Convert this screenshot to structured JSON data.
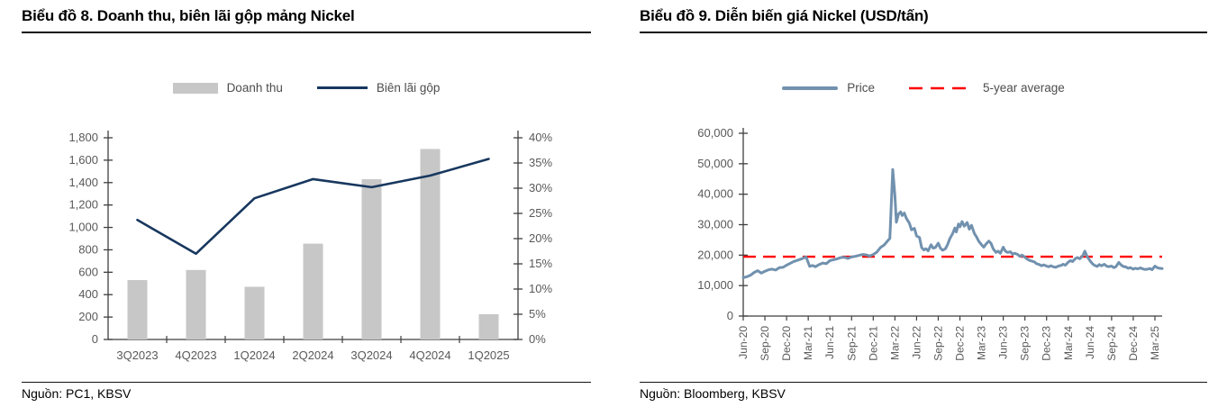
{
  "panels": {
    "left": {
      "title": "Biểu đồ 8. Doanh thu, biên lãi gộp mảng Nickel",
      "source": "Nguồn: PC1, KBSV"
    },
    "right": {
      "title": "Biểu đồ 9. Diễn biến giá Nickel (USD/tấn)",
      "source": "Nguồn: Bloomberg, KBSV"
    }
  },
  "colors": {
    "bar": "#c7c7c7",
    "margin_line": "#17375e",
    "price_line": "#7191ae",
    "average_line": "#ff0000",
    "axis_line": "#3f3f3f",
    "axis_text": "#595959",
    "rule": "#121212"
  },
  "chart_data": [
    {
      "type": "bar",
      "title": "Biểu đồ 8. Doanh thu, biên lãi gộp mảng Nickel",
      "categories": [
        "3Q2023",
        "4Q2023",
        "1Q2024",
        "2Q2024",
        "3Q2024",
        "4Q2024",
        "1Q2025"
      ],
      "series": [
        {
          "name": "Doanh thu",
          "type": "bar",
          "axis": "left",
          "color": "#c7c7c7",
          "values": [
            530,
            620,
            470,
            855,
            1430,
            1700,
            225
          ]
        },
        {
          "name": "Biên lãi gộp",
          "type": "line",
          "axis": "right",
          "color": "#17375e",
          "values": [
            23.7,
            17.0,
            28.0,
            31.8,
            30.2,
            32.5,
            35.8
          ],
          "unit": "%"
        }
      ],
      "left_axis": {
        "min": 0,
        "max": 1800,
        "step": 200
      },
      "right_axis": {
        "min": 0,
        "max": 40,
        "step": 5,
        "unit": "%"
      },
      "grid": false,
      "legend_position": "top"
    },
    {
      "type": "line",
      "title": "Biểu đồ 9. Diễn biến giá Nickel (USD/tấn)",
      "ylabel": "USD/tấn",
      "y_axis": {
        "min": 0,
        "max": 60000,
        "step": 10000
      },
      "x_tick_labels": [
        "Jun-20",
        "Sep-20",
        "Dec-20",
        "Mar-21",
        "Jun-21",
        "Sep-21",
        "Dec-21",
        "Mar-22",
        "Jun-22",
        "Sep-22",
        "Dec-22",
        "Mar-23",
        "Jun-23",
        "Sep-23",
        "Dec-23",
        "Mar-24",
        "Jun-24",
        "Sep-24",
        "Dec-24",
        "Mar-25"
      ],
      "x_tick_step_months": 3,
      "x_unit": "months since Jun-20",
      "grid": false,
      "legend_position": "top",
      "average_line": {
        "name": "5-year average",
        "value": 19500,
        "color": "#ff0000",
        "style": "dashed"
      },
      "price_series": {
        "name": "Price",
        "color": "#7191ae",
        "points": [
          [
            0,
            12600
          ],
          [
            0.5,
            12900
          ],
          [
            1,
            13400
          ],
          [
            1.5,
            14300
          ],
          [
            2,
            14900
          ],
          [
            2.5,
            14100
          ],
          [
            3,
            14700
          ],
          [
            3.5,
            15200
          ],
          [
            4,
            15400
          ],
          [
            4.5,
            15100
          ],
          [
            5,
            15900
          ],
          [
            5.5,
            16000
          ],
          [
            6,
            16700
          ],
          [
            6.5,
            17300
          ],
          [
            7,
            17900
          ],
          [
            7.5,
            18300
          ],
          [
            8,
            18700
          ],
          [
            8.7,
            19400
          ],
          [
            9.2,
            16300
          ],
          [
            9.6,
            16600
          ],
          [
            10,
            16200
          ],
          [
            10.5,
            16900
          ],
          [
            11,
            17400
          ],
          [
            11.5,
            17200
          ],
          [
            12,
            18200
          ],
          [
            12.5,
            18500
          ],
          [
            13,
            18800
          ],
          [
            13.5,
            19200
          ],
          [
            14,
            19300
          ],
          [
            14.5,
            18900
          ],
          [
            15,
            19400
          ],
          [
            15.5,
            19600
          ],
          [
            16,
            19900
          ],
          [
            16.5,
            20200
          ],
          [
            17,
            20100
          ],
          [
            17.5,
            19700
          ],
          [
            18,
            20200
          ],
          [
            18.5,
            21000
          ],
          [
            19,
            22500
          ],
          [
            19.5,
            23300
          ],
          [
            20,
            24700
          ],
          [
            20.3,
            25500
          ],
          [
            20.7,
            48100
          ],
          [
            21,
            39500
          ],
          [
            21.2,
            30800
          ],
          [
            21.5,
            33500
          ],
          [
            21.8,
            34200
          ],
          [
            22,
            33000
          ],
          [
            22.3,
            33800
          ],
          [
            22.6,
            32000
          ],
          [
            23,
            30500
          ],
          [
            23.3,
            28300
          ],
          [
            23.7,
            28800
          ],
          [
            24,
            26300
          ],
          [
            24.4,
            25800
          ],
          [
            24.7,
            22500
          ],
          [
            25,
            21700
          ],
          [
            25.3,
            22100
          ],
          [
            25.6,
            21400
          ],
          [
            26,
            23400
          ],
          [
            26.3,
            22300
          ],
          [
            26.6,
            22500
          ],
          [
            27,
            23900
          ],
          [
            27.3,
            22300
          ],
          [
            27.6,
            21600
          ],
          [
            28,
            22100
          ],
          [
            28.3,
            23500
          ],
          [
            28.6,
            25400
          ],
          [
            29,
            27100
          ],
          [
            29.3,
            28900
          ],
          [
            29.5,
            27600
          ],
          [
            29.8,
            30200
          ],
          [
            30,
            29300
          ],
          [
            30.3,
            31000
          ],
          [
            30.6,
            29500
          ],
          [
            31,
            30700
          ],
          [
            31.3,
            28500
          ],
          [
            31.6,
            29800
          ],
          [
            32,
            27100
          ],
          [
            32.3,
            26000
          ],
          [
            32.6,
            24600
          ],
          [
            33,
            23400
          ],
          [
            33.3,
            22600
          ],
          [
            33.6,
            23600
          ],
          [
            34,
            24600
          ],
          [
            34.3,
            23900
          ],
          [
            34.6,
            22100
          ],
          [
            35,
            20900
          ],
          [
            35.3,
            21300
          ],
          [
            35.6,
            20600
          ],
          [
            36,
            22600
          ],
          [
            36.3,
            21300
          ],
          [
            36.6,
            20900
          ],
          [
            37,
            21100
          ],
          [
            37.3,
            20300
          ],
          [
            37.6,
            20600
          ],
          [
            38,
            20200
          ],
          [
            38.3,
            19600
          ],
          [
            38.6,
            20000
          ],
          [
            39,
            19300
          ],
          [
            39.3,
            18700
          ],
          [
            39.6,
            18300
          ],
          [
            40,
            18000
          ],
          [
            40.3,
            17800
          ],
          [
            40.6,
            17200
          ],
          [
            41,
            16900
          ],
          [
            41.3,
            16500
          ],
          [
            41.6,
            16800
          ],
          [
            42,
            16400
          ],
          [
            42.3,
            16200
          ],
          [
            42.6,
            16500
          ],
          [
            43,
            16100
          ],
          [
            43.3,
            16000
          ],
          [
            43.6,
            16400
          ],
          [
            44,
            16600
          ],
          [
            44.3,
            17000
          ],
          [
            44.6,
            16700
          ],
          [
            45,
            17700
          ],
          [
            45.3,
            18200
          ],
          [
            45.6,
            17900
          ],
          [
            46,
            18900
          ],
          [
            46.3,
            19200
          ],
          [
            46.6,
            18800
          ],
          [
            47,
            19800
          ],
          [
            47.3,
            21300
          ],
          [
            47.6,
            19600
          ],
          [
            48,
            18200
          ],
          [
            48.3,
            17300
          ],
          [
            48.6,
            16700
          ],
          [
            49,
            16300
          ],
          [
            49.3,
            16900
          ],
          [
            49.6,
            16500
          ],
          [
            50,
            17000
          ],
          [
            50.3,
            16400
          ],
          [
            50.6,
            16200
          ],
          [
            51,
            16400
          ],
          [
            51.3,
            15900
          ],
          [
            51.6,
            16200
          ],
          [
            52,
            17600
          ],
          [
            52.3,
            16800
          ],
          [
            52.6,
            16300
          ],
          [
            53,
            16100
          ],
          [
            53.3,
            15700
          ],
          [
            53.6,
            15900
          ],
          [
            54,
            15400
          ],
          [
            54.3,
            15700
          ],
          [
            54.6,
            15500
          ],
          [
            55,
            15800
          ],
          [
            55.3,
            15500
          ],
          [
            55.6,
            15300
          ],
          [
            56,
            15400
          ],
          [
            56.3,
            15600
          ],
          [
            56.6,
            15200
          ],
          [
            57,
            16400
          ],
          [
            57.3,
            15900
          ],
          [
            57.6,
            15700
          ],
          [
            58,
            15600
          ]
        ]
      }
    }
  ]
}
